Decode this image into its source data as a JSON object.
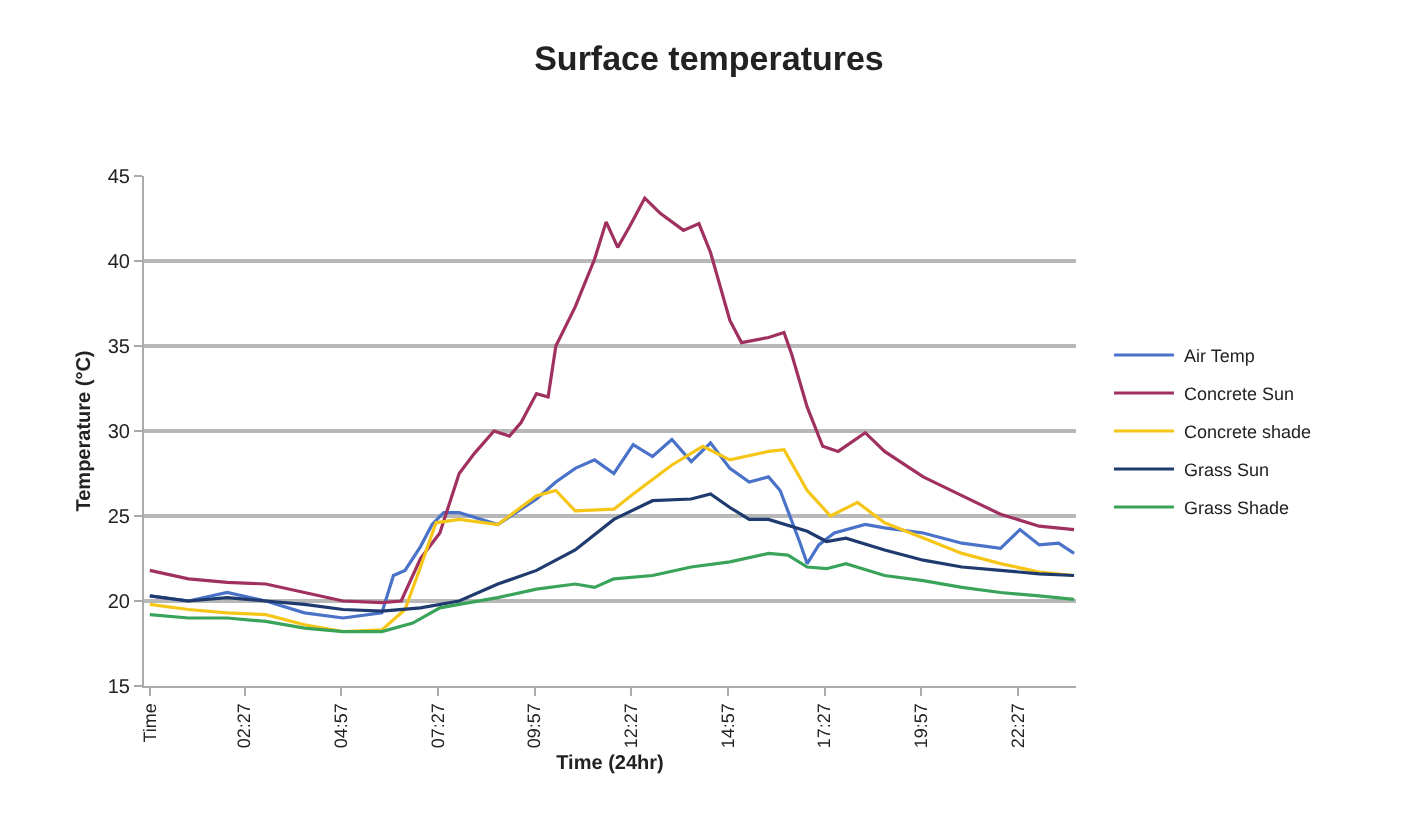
{
  "chart_data": {
    "type": "line",
    "title": "Surface temperatures",
    "xlabel": "Time (24hr)",
    "ylabel": "Temperature (°C)",
    "xlim": [
      -0.15,
      23.95
    ],
    "ylim": [
      15,
      45
    ],
    "yticks": [
      15,
      20,
      25,
      30,
      35,
      40,
      45
    ],
    "xticks": [
      {
        "value": 0,
        "label": "Time"
      },
      {
        "value": 2.45,
        "label": "02:27"
      },
      {
        "value": 4.95,
        "label": "04:57"
      },
      {
        "value": 7.45,
        "label": "07:27"
      },
      {
        "value": 9.95,
        "label": "09:57"
      },
      {
        "value": 12.45,
        "label": "12:27"
      },
      {
        "value": 14.95,
        "label": "14:57"
      },
      {
        "value": 17.45,
        "label": "17:27"
      },
      {
        "value": 19.95,
        "label": "19:57"
      },
      {
        "value": 22.45,
        "label": "22:27"
      }
    ],
    "grid": "y",
    "legend": "right",
    "marker": "none",
    "line_style": "solid",
    "series": [
      {
        "name": "Air Temp",
        "color": "#4a72c8",
        "x": [
          0,
          1,
          2,
          3,
          4,
          5,
          6,
          6.3,
          6.6,
          7,
          7.3,
          7.6,
          8,
          9,
          10,
          10.5,
          11,
          11.5,
          12,
          12.5,
          13,
          13.5,
          14,
          14.5,
          15,
          15.5,
          16,
          16.3,
          16.8,
          17,
          17.3,
          17.7,
          18.5,
          19,
          20,
          21,
          22,
          22.5,
          23,
          23.5,
          23.9
        ],
        "values": [
          20.3,
          20.0,
          20.5,
          20.0,
          19.3,
          19.0,
          19.3,
          21.5,
          21.8,
          23.2,
          24.5,
          25.2,
          25.2,
          24.5,
          26.0,
          27.0,
          27.8,
          28.3,
          27.5,
          29.2,
          28.5,
          29.5,
          28.2,
          29.3,
          27.8,
          27.0,
          27.3,
          26.5,
          23.5,
          22.2,
          23.3,
          24.0,
          24.5,
          24.3,
          24.0,
          23.4,
          23.1,
          24.2,
          23.3,
          23.4,
          22.8
        ]
      },
      {
        "name": "Concrete Sun",
        "color": "#a0305f",
        "x": [
          0,
          1,
          2,
          3,
          4,
          5,
          6,
          6.5,
          7,
          7.5,
          8,
          8.4,
          8.9,
          9.3,
          9.6,
          10,
          10.3,
          10.5,
          11,
          11.5,
          11.8,
          12.1,
          12.4,
          12.8,
          13.2,
          13.8,
          14.2,
          14.5,
          15,
          15.3,
          16,
          16.4,
          16.6,
          17,
          17.4,
          17.8,
          18.5,
          19,
          20,
          21,
          22,
          23,
          23.9
        ],
        "values": [
          21.8,
          21.3,
          21.1,
          21.0,
          20.5,
          20.0,
          19.9,
          20.0,
          22.5,
          24.0,
          27.5,
          28.7,
          30.0,
          29.7,
          30.5,
          32.2,
          32.0,
          35.0,
          37.3,
          40.1,
          42.3,
          40.8,
          42.0,
          43.7,
          42.8,
          41.8,
          42.2,
          40.5,
          36.5,
          35.2,
          35.5,
          35.8,
          34.5,
          31.4,
          29.1,
          28.8,
          29.9,
          28.8,
          27.3,
          26.2,
          25.1,
          24.4,
          24.2
        ]
      },
      {
        "name": "Concrete shade",
        "color": "#f5c518",
        "x": [
          0,
          1,
          2,
          3,
          4,
          5,
          6,
          6.6,
          7,
          7.4,
          8,
          9,
          10,
          10.5,
          11,
          12,
          12.5,
          13.5,
          14.3,
          15,
          16,
          16.4,
          17,
          17.6,
          18.3,
          19,
          20,
          21,
          22,
          23,
          23.9
        ],
        "values": [
          19.8,
          19.5,
          19.3,
          19.2,
          18.6,
          18.2,
          18.3,
          19.5,
          22.0,
          24.6,
          24.8,
          24.5,
          26.2,
          26.5,
          25.3,
          25.4,
          26.3,
          28.0,
          29.1,
          28.3,
          28.8,
          28.9,
          26.5,
          25.0,
          25.8,
          24.6,
          23.7,
          22.8,
          22.2,
          21.7,
          21.5
        ]
      },
      {
        "name": "Grass Sun",
        "color": "#1f3a6e",
        "x": [
          0,
          1,
          2,
          3,
          4,
          5,
          6,
          7,
          8,
          9,
          10,
          11,
          12,
          13,
          14,
          14.5,
          15,
          15.5,
          16,
          17,
          17.5,
          18,
          19,
          20,
          21,
          22,
          23,
          23.9
        ],
        "values": [
          20.3,
          20.0,
          20.2,
          20.0,
          19.8,
          19.5,
          19.4,
          19.6,
          20.0,
          21.0,
          21.8,
          23.0,
          24.8,
          25.9,
          26.0,
          26.3,
          25.5,
          24.8,
          24.8,
          24.1,
          23.5,
          23.7,
          23.0,
          22.4,
          22.0,
          21.8,
          21.6,
          21.5
        ]
      },
      {
        "name": "Grass Shade",
        "color": "#3aa35a",
        "x": [
          0,
          1,
          2,
          3,
          4,
          5,
          6,
          6.8,
          7.5,
          8,
          9,
          10,
          11,
          11.5,
          12,
          13,
          14,
          15,
          16,
          16.5,
          17,
          17.5,
          18,
          19,
          20,
          21,
          22,
          23,
          23.9
        ],
        "values": [
          19.2,
          19.0,
          19.0,
          18.8,
          18.4,
          18.2,
          18.2,
          18.7,
          19.6,
          19.8,
          20.2,
          20.7,
          21.0,
          20.8,
          21.3,
          21.5,
          22.0,
          22.3,
          22.8,
          22.7,
          22.0,
          21.9,
          22.2,
          21.5,
          21.2,
          20.8,
          20.5,
          20.3,
          20.1
        ]
      }
    ]
  }
}
